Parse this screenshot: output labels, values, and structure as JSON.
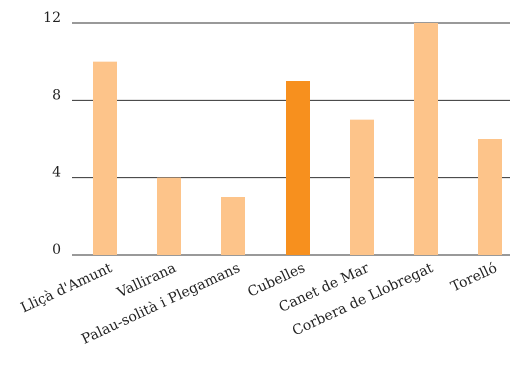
{
  "chart_data": {
    "type": "bar",
    "categories": [
      "Lliçà d'Amunt",
      "Vallirana",
      "Palau-solità i Plegamans",
      "Cubelles",
      "Canet de Mar",
      "Corbera de Llobregat",
      "Torelló"
    ],
    "values": [
      10,
      4,
      3,
      9,
      7,
      12,
      6
    ],
    "highlight_index": 3,
    "title": "",
    "xlabel": "",
    "ylabel": "",
    "ylim": [
      0,
      12
    ],
    "yticks": [
      0,
      4,
      8,
      12
    ],
    "grid": true,
    "colors": {
      "bar": "#fdc48a",
      "highlight": "#f7901e"
    }
  }
}
